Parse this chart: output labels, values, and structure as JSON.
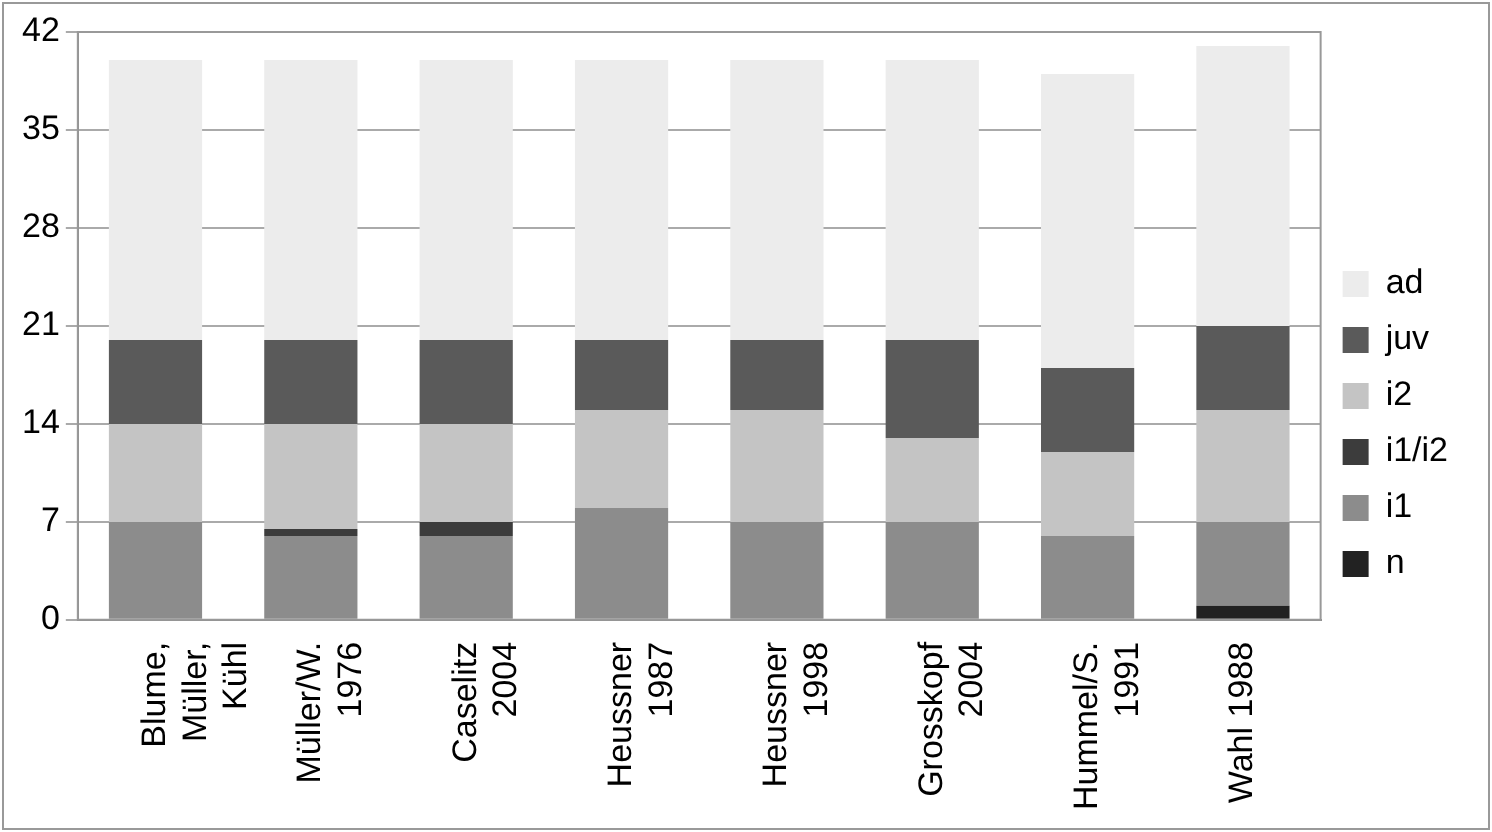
{
  "chart_data": {
    "type": "bar",
    "stacked": true,
    "categories": [
      "Blume,\nMüller,\nKühl",
      "Müller/W.\n1976",
      "Caselitz\n2004",
      "Heussner\n1987",
      "Heussner\n1998",
      "Grosskopf\n2004",
      "Hummel/S.\n1991",
      "Wahl 1988"
    ],
    "series": [
      {
        "name": "n",
        "color": "#222222",
        "values": [
          0,
          0,
          0,
          0,
          0,
          0,
          0,
          1
        ]
      },
      {
        "name": "i1",
        "color": "#8c8c8c",
        "values": [
          7,
          6,
          6,
          8,
          7,
          7,
          6,
          6
        ]
      },
      {
        "name": "i1/i2",
        "color": "#3c3c3c",
        "values": [
          0,
          0.5,
          1,
          0,
          0,
          0,
          0,
          0
        ]
      },
      {
        "name": "i2",
        "color": "#c4c4c4",
        "values": [
          7,
          7.5,
          7,
          7,
          8,
          6,
          6,
          8
        ]
      },
      {
        "name": "juv",
        "color": "#5a5a5a",
        "values": [
          6,
          6,
          6,
          5,
          5,
          7,
          6,
          6
        ]
      },
      {
        "name": "ad",
        "color": "#ececec",
        "values": [
          20,
          20,
          20,
          20,
          20,
          20,
          21,
          20
        ]
      }
    ],
    "ylim": [
      0,
      42
    ],
    "yticks": [
      0,
      7,
      14,
      21,
      28,
      35,
      42
    ],
    "grid": "y",
    "legend": "right"
  }
}
